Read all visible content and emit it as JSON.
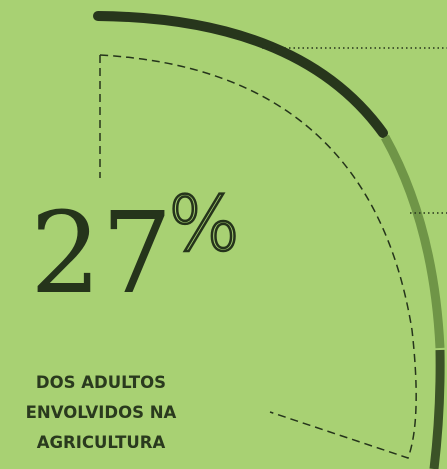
{
  "stat": {
    "value": 27,
    "unit": "%",
    "caption": [
      "DOS ADULTOS",
      "ENVOLVIDOS NA",
      "AGRICULTURA"
    ]
  }
}
